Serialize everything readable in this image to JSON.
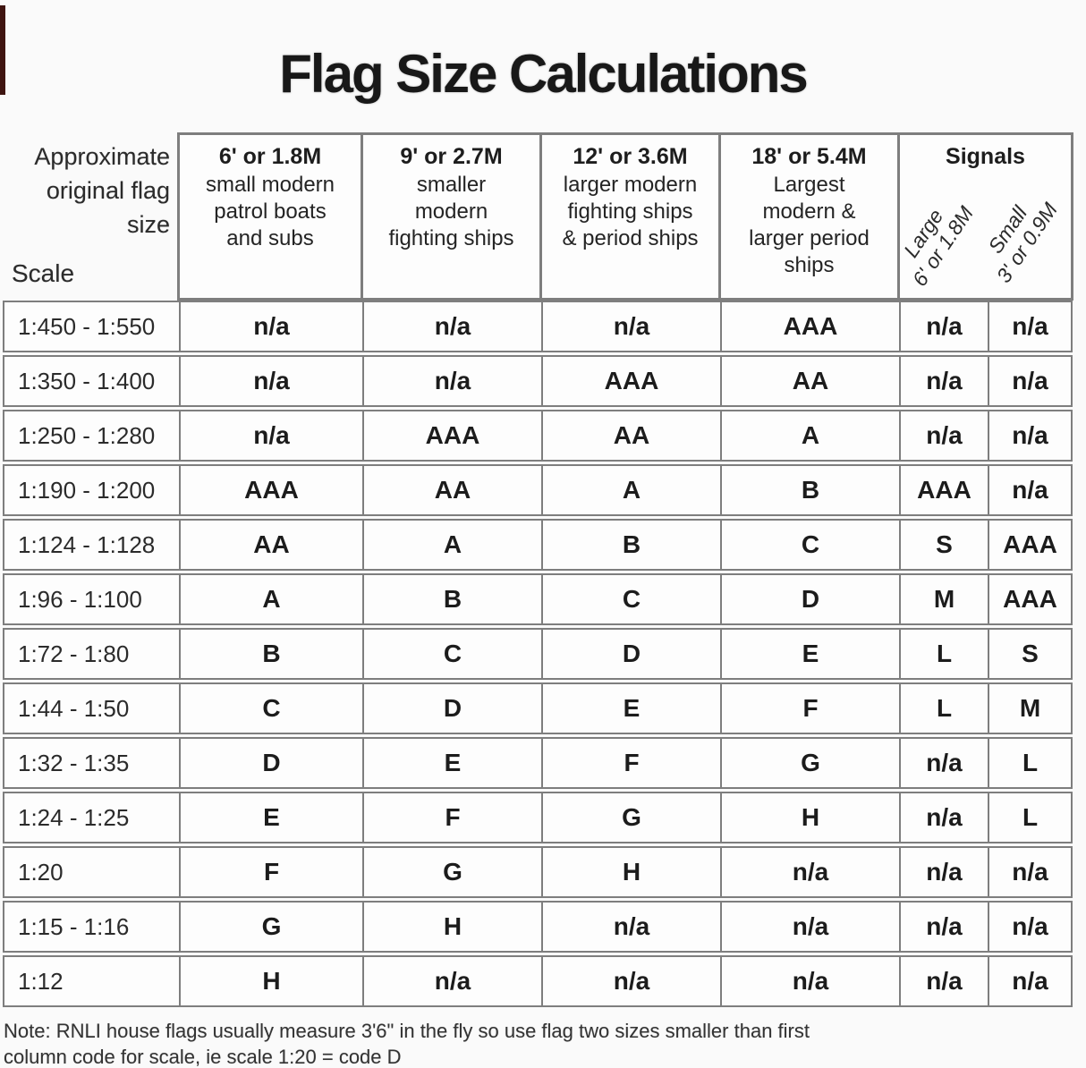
{
  "page": {
    "title": "Flag Size Calculations"
  },
  "header": {
    "corner_label": "Approximate\noriginal flag\nsize",
    "scale_label": "Scale",
    "columns": [
      {
        "size": "6' or 1.8M",
        "desc": "small modern\npatrol boats\nand subs"
      },
      {
        "size": "9' or 2.7M",
        "desc": "smaller\nmodern\nfighting ships"
      },
      {
        "size": "12' or 3.6M",
        "desc": "larger modern\nfighting ships\n& period ships"
      },
      {
        "size": "18' or 5.4M",
        "desc": "Largest\nmodern &\nlarger period\nships"
      }
    ],
    "signals": {
      "label": "Signals",
      "large": "Large\n6' or 1.8M",
      "small": "Small\n3' or 0.9M"
    }
  },
  "table": {
    "rows": [
      {
        "scale": "1:450 - 1:550",
        "cells": [
          "n/a",
          "n/a",
          "n/a",
          "AAA",
          "n/a",
          "n/a"
        ]
      },
      {
        "scale": "1:350 - 1:400",
        "cells": [
          "n/a",
          "n/a",
          "AAA",
          "AA",
          "n/a",
          "n/a"
        ]
      },
      {
        "scale": "1:250 - 1:280",
        "cells": [
          "n/a",
          "AAA",
          "AA",
          "A",
          "n/a",
          "n/a"
        ]
      },
      {
        "scale": "1:190 - 1:200",
        "cells": [
          "AAA",
          "AA",
          "A",
          "B",
          "AAA",
          "n/a"
        ]
      },
      {
        "scale": "1:124 - 1:128",
        "cells": [
          "AA",
          "A",
          "B",
          "C",
          "S",
          "AAA"
        ]
      },
      {
        "scale": "1:96 - 1:100",
        "cells": [
          "A",
          "B",
          "C",
          "D",
          "M",
          "AAA"
        ]
      },
      {
        "scale": "1:72 - 1:80",
        "cells": [
          "B",
          "C",
          "D",
          "E",
          "L",
          "S"
        ]
      },
      {
        "scale": "1:44 - 1:50",
        "cells": [
          "C",
          "D",
          "E",
          "F",
          "L",
          "M"
        ]
      },
      {
        "scale": "1:32 - 1:35",
        "cells": [
          "D",
          "E",
          "F",
          "G",
          "n/a",
          "L"
        ]
      },
      {
        "scale": "1:24 - 1:25",
        "cells": [
          "E",
          "F",
          "G",
          "H",
          "n/a",
          "L"
        ]
      },
      {
        "scale": "1:20",
        "cells": [
          "F",
          "G",
          "H",
          "n/a",
          "n/a",
          "n/a"
        ]
      },
      {
        "scale": "1:15 - 1:16",
        "cells": [
          "G",
          "H",
          "n/a",
          "n/a",
          "n/a",
          "n/a"
        ]
      },
      {
        "scale": "1:12",
        "cells": [
          "H",
          "n/a",
          "n/a",
          "n/a",
          "n/a",
          "n/a"
        ]
      }
    ]
  },
  "note": "Note: RNLI house flags usually measure 3'6\" in the fly so use flag two sizes smaller than first\ncolumn code for scale,  ie scale 1:20 = code D",
  "colors": {
    "border": "#7e7e7e",
    "text": "#1f1f1f",
    "scan_mark": "#3f1410"
  }
}
